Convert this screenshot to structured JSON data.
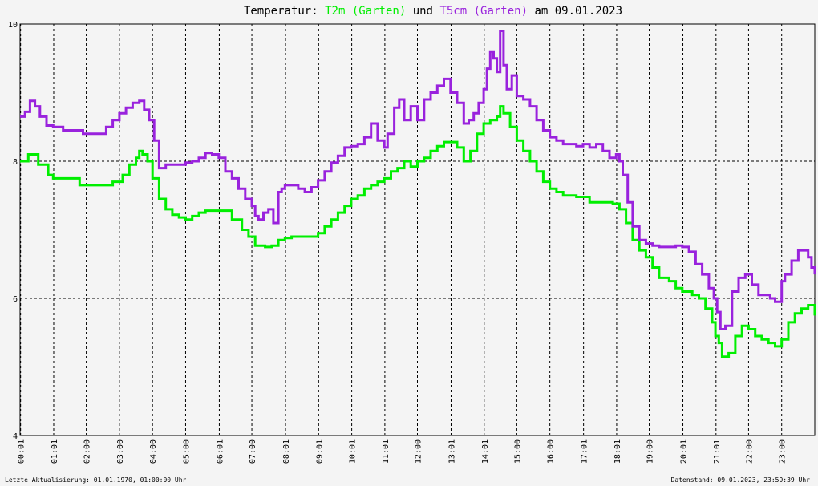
{
  "title": {
    "prefix": "Temperatur:",
    "series1": "T2m (Garten)",
    "joiner": "und",
    "series2": "T5cm (Garten)",
    "suffix": "am 09.01.2023"
  },
  "footer": {
    "left": "Letzte Aktualisierung: 01.01.1970, 01:00:00 Uhr",
    "right": "Datenstand: 09.01.2023, 23:59:39 Uhr"
  },
  "colors": {
    "t2m": "#00ee00",
    "t5cm": "#9922dd",
    "grid": "#000000",
    "background": "#f4f4f4"
  },
  "chart_data": {
    "type": "line",
    "ylim": [
      4,
      10
    ],
    "xlim": [
      0,
      24
    ],
    "y_ticks": [
      "4",
      "6",
      "8",
      "10"
    ],
    "x_ticks": [
      {
        "t": 0.0167,
        "label": "00:01"
      },
      {
        "t": 1.0167,
        "label": "01:01"
      },
      {
        "t": 2.0,
        "label": "02:00"
      },
      {
        "t": 3.0,
        "label": "03:00"
      },
      {
        "t": 4.0,
        "label": "04:00"
      },
      {
        "t": 5.0,
        "label": "05:00"
      },
      {
        "t": 6.0167,
        "label": "06:01"
      },
      {
        "t": 7.0,
        "label": "07:00"
      },
      {
        "t": 8.0167,
        "label": "08:01"
      },
      {
        "t": 9.0167,
        "label": "09:01"
      },
      {
        "t": 10.0167,
        "label": "10:01"
      },
      {
        "t": 11.0167,
        "label": "11:01"
      },
      {
        "t": 12.0,
        "label": "12:00"
      },
      {
        "t": 13.0167,
        "label": "13:01"
      },
      {
        "t": 14.0167,
        "label": "14:01"
      },
      {
        "t": 15.0,
        "label": "15:00"
      },
      {
        "t": 16.0,
        "label": "16:00"
      },
      {
        "t": 17.0167,
        "label": "17:01"
      },
      {
        "t": 18.0167,
        "label": "18:01"
      },
      {
        "t": 19.0,
        "label": "19:00"
      },
      {
        "t": 20.0167,
        "label": "20:01"
      },
      {
        "t": 21.0167,
        "label": "21:01"
      },
      {
        "t": 22.0,
        "label": "22:00"
      },
      {
        "t": 23.0,
        "label": "23:00"
      }
    ],
    "grid": true,
    "series": [
      {
        "name": "T2m (Garten)",
        "color": "#00ee00",
        "x": [
          0,
          0.25,
          0.55,
          0.85,
          1.0,
          1.6,
          1.8,
          2.6,
          2.8,
          3.1,
          3.3,
          3.5,
          3.6,
          3.7,
          3.85,
          4.0,
          4.2,
          4.4,
          4.6,
          4.8,
          5.0,
          5.2,
          5.4,
          5.6,
          5.8,
          6.0,
          6.4,
          6.7,
          6.9,
          7.1,
          7.4,
          7.6,
          7.8,
          8.0,
          8.2,
          8.6,
          8.8,
          9.0,
          9.2,
          9.4,
          9.6,
          9.8,
          10.0,
          10.2,
          10.4,
          10.6,
          10.8,
          11.0,
          11.2,
          11.4,
          11.6,
          11.8,
          12.0,
          12.2,
          12.4,
          12.6,
          12.8,
          13.0,
          13.2,
          13.4,
          13.6,
          13.8,
          14.0,
          14.2,
          14.4,
          14.5,
          14.6,
          14.8,
          15.0,
          15.2,
          15.4,
          15.6,
          15.8,
          16.0,
          16.2,
          16.4,
          16.8,
          17.2,
          17.6,
          17.9,
          18.1,
          18.3,
          18.5,
          18.7,
          18.9,
          19.1,
          19.3,
          19.6,
          19.8,
          20.0,
          20.3,
          20.5,
          20.7,
          20.9,
          21.0,
          21.1,
          21.2,
          21.4,
          21.6,
          21.8,
          22.0,
          22.2,
          22.4,
          22.6,
          22.8,
          23.0,
          23.2,
          23.4,
          23.6,
          23.8,
          24.0
        ],
        "values": [
          8.0,
          8.1,
          7.95,
          7.8,
          7.75,
          7.75,
          7.65,
          7.65,
          7.7,
          7.8,
          7.95,
          8.05,
          8.15,
          8.1,
          8.0,
          7.75,
          7.45,
          7.3,
          7.22,
          7.18,
          7.15,
          7.2,
          7.25,
          7.28,
          7.28,
          7.28,
          7.15,
          7.0,
          6.9,
          6.77,
          6.75,
          6.77,
          6.85,
          6.88,
          6.9,
          6.9,
          6.9,
          6.95,
          7.05,
          7.15,
          7.25,
          7.35,
          7.45,
          7.5,
          7.6,
          7.65,
          7.7,
          7.75,
          7.85,
          7.9,
          8.0,
          7.92,
          8.0,
          8.05,
          8.15,
          8.22,
          8.28,
          8.28,
          8.2,
          8.0,
          8.15,
          8.4,
          8.55,
          8.6,
          8.65,
          8.8,
          8.7,
          8.5,
          8.3,
          8.15,
          8.0,
          7.85,
          7.7,
          7.6,
          7.55,
          7.5,
          7.48,
          7.4,
          7.4,
          7.38,
          7.3,
          7.1,
          6.85,
          6.7,
          6.6,
          6.45,
          6.3,
          6.25,
          6.15,
          6.1,
          6.05,
          6.0,
          5.85,
          5.65,
          5.45,
          5.35,
          5.15,
          5.2,
          5.45,
          5.6,
          5.55,
          5.45,
          5.4,
          5.35,
          5.3,
          5.4,
          5.65,
          5.78,
          5.85,
          5.9,
          5.75
        ]
      },
      {
        "name": "T5cm (Garten)",
        "color": "#9922dd",
        "x": [
          0,
          0.15,
          0.3,
          0.45,
          0.6,
          0.8,
          1.0,
          1.3,
          1.6,
          1.9,
          2.2,
          2.4,
          2.6,
          2.8,
          3.0,
          3.2,
          3.4,
          3.6,
          3.75,
          3.9,
          4.05,
          4.2,
          4.4,
          4.6,
          4.8,
          5.0,
          5.2,
          5.4,
          5.6,
          5.8,
          6.0,
          6.2,
          6.4,
          6.6,
          6.8,
          7.0,
          7.1,
          7.2,
          7.35,
          7.5,
          7.65,
          7.8,
          7.9,
          8.0,
          8.2,
          8.4,
          8.6,
          8.8,
          9.0,
          9.2,
          9.4,
          9.6,
          9.8,
          10.0,
          10.2,
          10.4,
          10.6,
          10.8,
          11.0,
          11.1,
          11.3,
          11.45,
          11.6,
          11.8,
          12.0,
          12.2,
          12.4,
          12.6,
          12.8,
          13.0,
          13.2,
          13.4,
          13.55,
          13.7,
          13.85,
          14.0,
          14.1,
          14.2,
          14.3,
          14.4,
          14.5,
          14.6,
          14.7,
          14.85,
          15.0,
          15.2,
          15.4,
          15.6,
          15.8,
          16.0,
          16.2,
          16.4,
          16.6,
          16.8,
          17.0,
          17.2,
          17.4,
          17.6,
          17.8,
          18.0,
          18.1,
          18.2,
          18.35,
          18.5,
          18.7,
          18.9,
          19.1,
          19.3,
          19.6,
          19.8,
          20.0,
          20.2,
          20.4,
          20.6,
          20.8,
          20.95,
          21.05,
          21.15,
          21.3,
          21.5,
          21.7,
          21.9,
          22.1,
          22.3,
          22.5,
          22.65,
          22.8,
          23.0,
          23.1,
          23.3,
          23.5,
          23.7,
          23.8,
          23.9,
          24.0
        ],
        "values": [
          8.65,
          8.72,
          8.88,
          8.8,
          8.65,
          8.52,
          8.5,
          8.45,
          8.45,
          8.4,
          8.4,
          8.4,
          8.5,
          8.6,
          8.7,
          8.78,
          8.85,
          8.88,
          8.75,
          8.6,
          8.3,
          7.9,
          7.95,
          7.95,
          7.95,
          7.98,
          8.0,
          8.05,
          8.12,
          8.1,
          8.05,
          7.85,
          7.75,
          7.6,
          7.45,
          7.35,
          7.2,
          7.15,
          7.25,
          7.3,
          7.1,
          7.55,
          7.6,
          7.65,
          7.65,
          7.6,
          7.55,
          7.62,
          7.72,
          7.85,
          7.98,
          8.08,
          8.2,
          8.22,
          8.25,
          8.35,
          8.55,
          8.3,
          8.2,
          8.4,
          8.78,
          8.9,
          8.6,
          8.8,
          8.6,
          8.9,
          9.0,
          9.1,
          9.2,
          9.0,
          8.85,
          8.55,
          8.6,
          8.7,
          8.85,
          9.05,
          9.35,
          9.6,
          9.5,
          9.3,
          9.9,
          9.4,
          9.05,
          9.25,
          8.95,
          8.9,
          8.8,
          8.6,
          8.45,
          8.35,
          8.3,
          8.25,
          8.25,
          8.22,
          8.25,
          8.2,
          8.25,
          8.15,
          8.05,
          8.1,
          8.0,
          7.8,
          7.4,
          7.05,
          6.85,
          6.8,
          6.77,
          6.75,
          6.75,
          6.77,
          6.75,
          6.68,
          6.5,
          6.35,
          6.15,
          6.0,
          5.8,
          5.55,
          5.6,
          6.1,
          6.3,
          6.35,
          6.2,
          6.05,
          6.05,
          6.0,
          5.95,
          6.25,
          6.35,
          6.55,
          6.7,
          6.7,
          6.6,
          6.45,
          6.35
        ]
      }
    ]
  }
}
